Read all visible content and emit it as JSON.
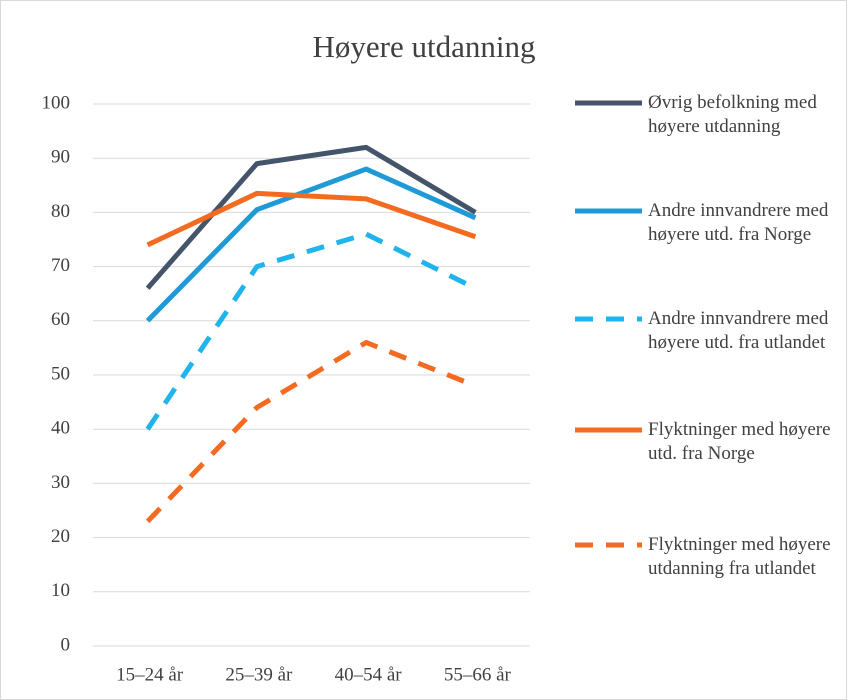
{
  "chart_data": {
    "type": "line",
    "title": "Høyere utdanning",
    "categories": [
      "15–24 år",
      "25–39 år",
      "40–54 år",
      "55–66 år"
    ],
    "series": [
      {
        "name": "Øvrig befolkning med høyere utdanning",
        "color": "#44546a",
        "linestyle": "solid",
        "values": [
          66,
          89,
          92,
          80
        ]
      },
      {
        "name": "Andre innvandrere med høyere utd. fra Norge",
        "color": "#1f9ad6",
        "linestyle": "solid",
        "values": [
          60,
          80.5,
          88,
          79
        ]
      },
      {
        "name": "Andre innvandrere med høyere utd. fra utlandet",
        "color": "#1fb4ec",
        "linestyle": "dashed",
        "values": [
          40,
          70,
          76,
          66
        ]
      },
      {
        "name": "Flyktninger med høyere utd. fra Norge",
        "color": "#f26b21",
        "linestyle": "solid",
        "values": [
          74,
          83.5,
          82.5,
          75.5
        ]
      },
      {
        "name": "Flyktninger med høyere utdanning fra utlandet",
        "color": "#f26b21",
        "linestyle": "dashed",
        "values": [
          23,
          44,
          56,
          48
        ]
      }
    ],
    "ylim": [
      0,
      100
    ],
    "yticks": [
      0,
      10,
      20,
      30,
      40,
      50,
      60,
      70,
      80,
      90,
      100
    ],
    "grid": true,
    "legend": "right"
  }
}
